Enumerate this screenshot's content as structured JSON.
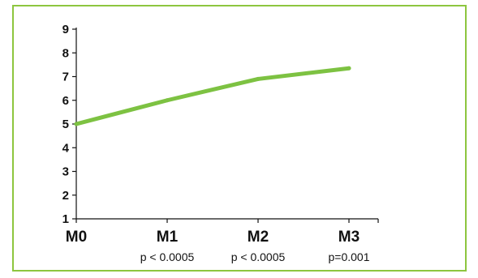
{
  "chart_data": {
    "type": "line",
    "title": "",
    "xlabel": "",
    "ylabel": "",
    "categories": [
      "M0",
      "M1",
      "M2",
      "M3"
    ],
    "category_notes": [
      "",
      "p < 0.0005",
      "p < 0.0005",
      "p=0.001"
    ],
    "series": [
      {
        "values": [
          5.0,
          6.0,
          6.9,
          7.35
        ],
        "color": "#7dc242"
      }
    ],
    "yticks": [
      1,
      2,
      3,
      4,
      5,
      6,
      7,
      8,
      9
    ],
    "ylim": [
      1,
      9
    ],
    "grid": false,
    "legend": "none",
    "colors": {
      "frame": "#8dc63f",
      "line": "#7dc242",
      "axis": "#111111"
    }
  }
}
